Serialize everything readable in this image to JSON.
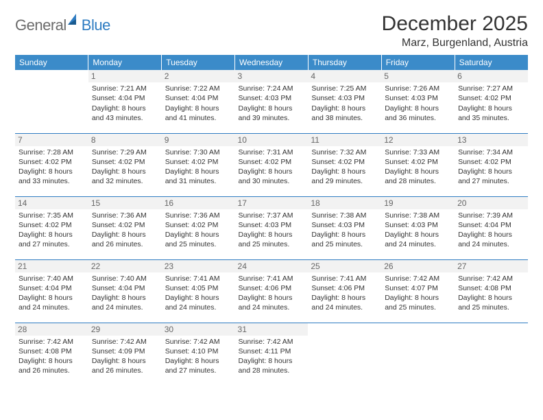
{
  "logo": {
    "text1": "General",
    "text2": "Blue"
  },
  "title": "December 2025",
  "location": "Marz, Burgenland, Austria",
  "colors": {
    "header_bg": "#3b8bc9",
    "header_text": "#ffffff",
    "divider": "#2e7cc2",
    "daynum_bg": "#f2f2f2",
    "daynum_text": "#666666",
    "body_text": "#333333",
    "logo_gray": "#6b6b6b",
    "logo_blue": "#2e7cc2"
  },
  "weekdays": [
    "Sunday",
    "Monday",
    "Tuesday",
    "Wednesday",
    "Thursday",
    "Friday",
    "Saturday"
  ],
  "weeks": [
    [
      null,
      {
        "n": "1",
        "sr": "Sunrise: 7:21 AM",
        "ss": "Sunset: 4:04 PM",
        "d1": "Daylight: 8 hours",
        "d2": "and 43 minutes."
      },
      {
        "n": "2",
        "sr": "Sunrise: 7:22 AM",
        "ss": "Sunset: 4:04 PM",
        "d1": "Daylight: 8 hours",
        "d2": "and 41 minutes."
      },
      {
        "n": "3",
        "sr": "Sunrise: 7:24 AM",
        "ss": "Sunset: 4:03 PM",
        "d1": "Daylight: 8 hours",
        "d2": "and 39 minutes."
      },
      {
        "n": "4",
        "sr": "Sunrise: 7:25 AM",
        "ss": "Sunset: 4:03 PM",
        "d1": "Daylight: 8 hours",
        "d2": "and 38 minutes."
      },
      {
        "n": "5",
        "sr": "Sunrise: 7:26 AM",
        "ss": "Sunset: 4:03 PM",
        "d1": "Daylight: 8 hours",
        "d2": "and 36 minutes."
      },
      {
        "n": "6",
        "sr": "Sunrise: 7:27 AM",
        "ss": "Sunset: 4:02 PM",
        "d1": "Daylight: 8 hours",
        "d2": "and 35 minutes."
      }
    ],
    [
      {
        "n": "7",
        "sr": "Sunrise: 7:28 AM",
        "ss": "Sunset: 4:02 PM",
        "d1": "Daylight: 8 hours",
        "d2": "and 33 minutes."
      },
      {
        "n": "8",
        "sr": "Sunrise: 7:29 AM",
        "ss": "Sunset: 4:02 PM",
        "d1": "Daylight: 8 hours",
        "d2": "and 32 minutes."
      },
      {
        "n": "9",
        "sr": "Sunrise: 7:30 AM",
        "ss": "Sunset: 4:02 PM",
        "d1": "Daylight: 8 hours",
        "d2": "and 31 minutes."
      },
      {
        "n": "10",
        "sr": "Sunrise: 7:31 AM",
        "ss": "Sunset: 4:02 PM",
        "d1": "Daylight: 8 hours",
        "d2": "and 30 minutes."
      },
      {
        "n": "11",
        "sr": "Sunrise: 7:32 AM",
        "ss": "Sunset: 4:02 PM",
        "d1": "Daylight: 8 hours",
        "d2": "and 29 minutes."
      },
      {
        "n": "12",
        "sr": "Sunrise: 7:33 AM",
        "ss": "Sunset: 4:02 PM",
        "d1": "Daylight: 8 hours",
        "d2": "and 28 minutes."
      },
      {
        "n": "13",
        "sr": "Sunrise: 7:34 AM",
        "ss": "Sunset: 4:02 PM",
        "d1": "Daylight: 8 hours",
        "d2": "and 27 minutes."
      }
    ],
    [
      {
        "n": "14",
        "sr": "Sunrise: 7:35 AM",
        "ss": "Sunset: 4:02 PM",
        "d1": "Daylight: 8 hours",
        "d2": "and 27 minutes."
      },
      {
        "n": "15",
        "sr": "Sunrise: 7:36 AM",
        "ss": "Sunset: 4:02 PM",
        "d1": "Daylight: 8 hours",
        "d2": "and 26 minutes."
      },
      {
        "n": "16",
        "sr": "Sunrise: 7:36 AM",
        "ss": "Sunset: 4:02 PM",
        "d1": "Daylight: 8 hours",
        "d2": "and 25 minutes."
      },
      {
        "n": "17",
        "sr": "Sunrise: 7:37 AM",
        "ss": "Sunset: 4:03 PM",
        "d1": "Daylight: 8 hours",
        "d2": "and 25 minutes."
      },
      {
        "n": "18",
        "sr": "Sunrise: 7:38 AM",
        "ss": "Sunset: 4:03 PM",
        "d1": "Daylight: 8 hours",
        "d2": "and 25 minutes."
      },
      {
        "n": "19",
        "sr": "Sunrise: 7:38 AM",
        "ss": "Sunset: 4:03 PM",
        "d1": "Daylight: 8 hours",
        "d2": "and 24 minutes."
      },
      {
        "n": "20",
        "sr": "Sunrise: 7:39 AM",
        "ss": "Sunset: 4:04 PM",
        "d1": "Daylight: 8 hours",
        "d2": "and 24 minutes."
      }
    ],
    [
      {
        "n": "21",
        "sr": "Sunrise: 7:40 AM",
        "ss": "Sunset: 4:04 PM",
        "d1": "Daylight: 8 hours",
        "d2": "and 24 minutes."
      },
      {
        "n": "22",
        "sr": "Sunrise: 7:40 AM",
        "ss": "Sunset: 4:04 PM",
        "d1": "Daylight: 8 hours",
        "d2": "and 24 minutes."
      },
      {
        "n": "23",
        "sr": "Sunrise: 7:41 AM",
        "ss": "Sunset: 4:05 PM",
        "d1": "Daylight: 8 hours",
        "d2": "and 24 minutes."
      },
      {
        "n": "24",
        "sr": "Sunrise: 7:41 AM",
        "ss": "Sunset: 4:06 PM",
        "d1": "Daylight: 8 hours",
        "d2": "and 24 minutes."
      },
      {
        "n": "25",
        "sr": "Sunrise: 7:41 AM",
        "ss": "Sunset: 4:06 PM",
        "d1": "Daylight: 8 hours",
        "d2": "and 24 minutes."
      },
      {
        "n": "26",
        "sr": "Sunrise: 7:42 AM",
        "ss": "Sunset: 4:07 PM",
        "d1": "Daylight: 8 hours",
        "d2": "and 25 minutes."
      },
      {
        "n": "27",
        "sr": "Sunrise: 7:42 AM",
        "ss": "Sunset: 4:08 PM",
        "d1": "Daylight: 8 hours",
        "d2": "and 25 minutes."
      }
    ],
    [
      {
        "n": "28",
        "sr": "Sunrise: 7:42 AM",
        "ss": "Sunset: 4:08 PM",
        "d1": "Daylight: 8 hours",
        "d2": "and 26 minutes."
      },
      {
        "n": "29",
        "sr": "Sunrise: 7:42 AM",
        "ss": "Sunset: 4:09 PM",
        "d1": "Daylight: 8 hours",
        "d2": "and 26 minutes."
      },
      {
        "n": "30",
        "sr": "Sunrise: 7:42 AM",
        "ss": "Sunset: 4:10 PM",
        "d1": "Daylight: 8 hours",
        "d2": "and 27 minutes."
      },
      {
        "n": "31",
        "sr": "Sunrise: 7:42 AM",
        "ss": "Sunset: 4:11 PM",
        "d1": "Daylight: 8 hours",
        "d2": "and 28 minutes."
      },
      null,
      null,
      null
    ]
  ]
}
